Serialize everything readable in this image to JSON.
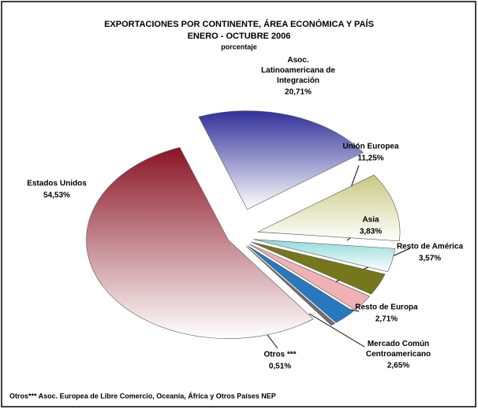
{
  "chart_data": {
    "type": "pie",
    "title": "EXPORTACIONES POR CONTINENTE, ÁREA ECONÓMICA Y PAÍS",
    "subtitle": "ENERO - OCTUBRE  2006",
    "unit_label": "porcentaje",
    "categories": [
      "Asoc.\nLatinoamericana de\nIntegración",
      "Unión Europea",
      "Asia",
      "Resto de América",
      "Resto de Europa",
      "Mercado Común\nCentroamericano",
      "Otros ***",
      "Estados Unidos"
    ],
    "values": [
      20.71,
      11.25,
      3.83,
      3.57,
      2.71,
      2.65,
      0.51,
      54.53
    ],
    "value_labels": [
      "20,71%",
      "11,25%",
      "3,83%",
      "3,57%",
      "2,71%",
      "2,65%",
      "0,51%",
      "54,53%"
    ],
    "colors": [
      "#30309a",
      "#c8c880",
      "#90dada",
      "#76761c",
      "#f0b0b4",
      "#2878c0",
      "#707070",
      "#8a1424"
    ],
    "footnote": "Otros*** Asoc. Europea de Libre Comercio, Oceanía, África y Otros Países NEP"
  }
}
